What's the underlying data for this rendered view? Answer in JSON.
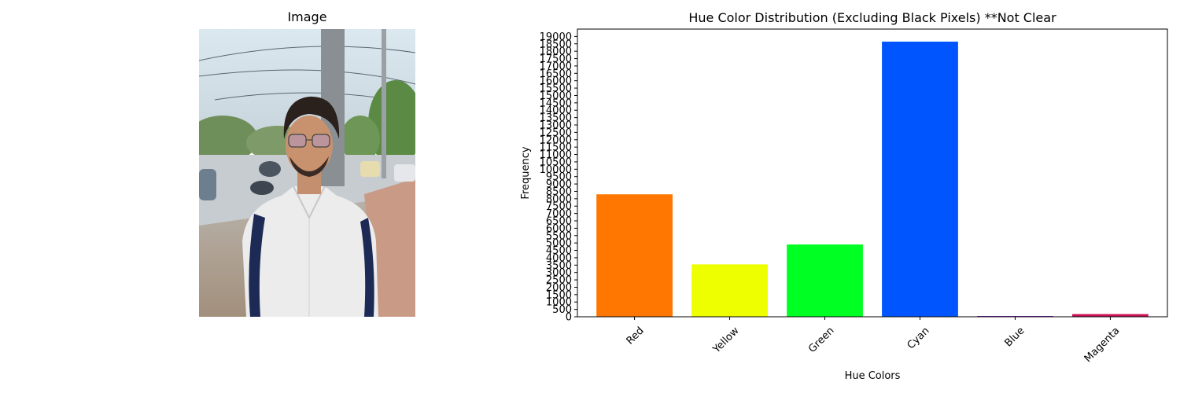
{
  "left_panel": {
    "title": "Image"
  },
  "chart_data": {
    "type": "bar",
    "title": "Hue Color Distribution (Excluding Black Pixels) **Not Clear",
    "xlabel": "Hue Colors",
    "ylabel": "Frequency",
    "categories": [
      "Red",
      "Yellow",
      "Green",
      "Cyan",
      "Blue",
      "Magenta"
    ],
    "values": [
      8300,
      3550,
      4900,
      18650,
      50,
      180
    ],
    "colors": [
      "#ff7700",
      "#eeff00",
      "#00ff22",
      "#0055ff",
      "#7700cc",
      "#cc1155"
    ],
    "ylim": [
      0,
      19500
    ],
    "yticks": [
      0,
      500,
      1000,
      1500,
      2000,
      2500,
      3000,
      3500,
      4000,
      4500,
      5000,
      5500,
      6000,
      6500,
      7000,
      7500,
      8000,
      8500,
      9000,
      9500,
      10000,
      10500,
      11000,
      11500,
      12000,
      12500,
      13000,
      13500,
      14000,
      14500,
      15000,
      15500,
      16000,
      16500,
      17000,
      17500,
      18000,
      18500,
      19000
    ],
    "grid": false,
    "legend": "none"
  }
}
